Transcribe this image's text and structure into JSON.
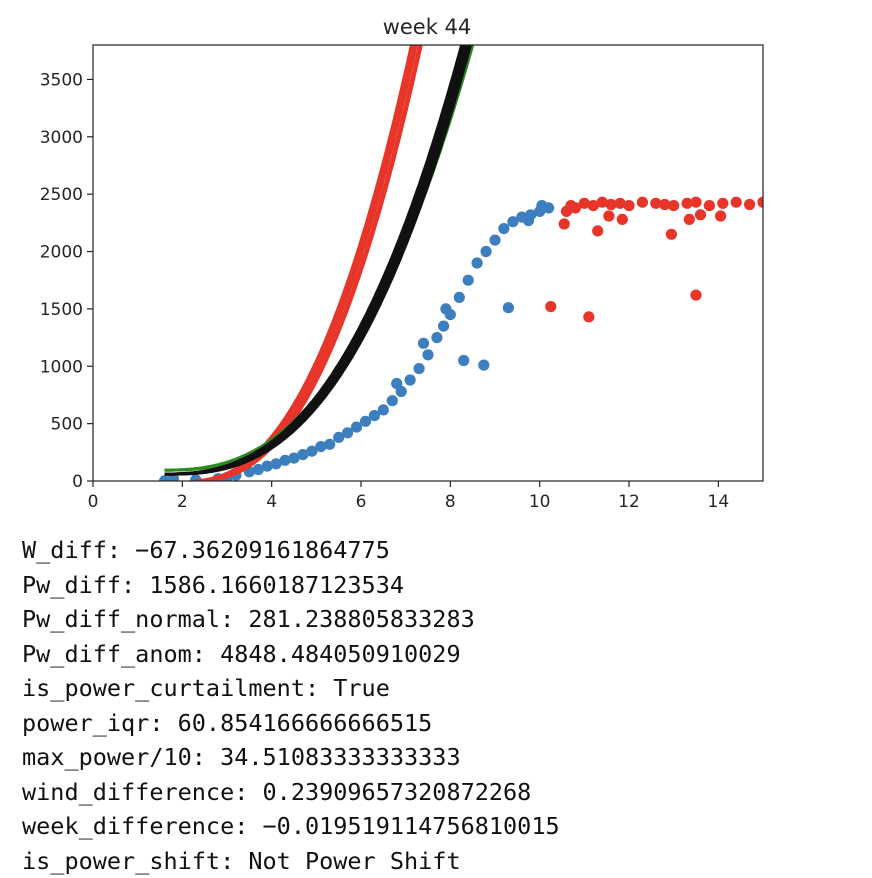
{
  "chart_data": {
    "type": "scatter",
    "title": "week 44",
    "xlabel": "",
    "ylabel": "",
    "xlim": [
      0,
      15
    ],
    "ylim": [
      0,
      3800
    ],
    "xticks": [
      0,
      2,
      4,
      6,
      8,
      10,
      12,
      14
    ],
    "yticks": [
      0,
      500,
      1000,
      1500,
      2000,
      2500,
      3000,
      3500
    ],
    "grid": false,
    "legend": "none",
    "colors": {
      "blue": "#3d7ebf",
      "red": "#e8352a",
      "black": "#111111",
      "green": "#2e8b22"
    },
    "series": [
      {
        "color": "#3d7ebf",
        "kind": "points",
        "points": [
          [
            1.6,
            0
          ],
          [
            1.8,
            20
          ],
          [
            2.3,
            10
          ],
          [
            2.8,
            20
          ],
          [
            3.0,
            30
          ],
          [
            3.2,
            50
          ],
          [
            3.5,
            80
          ],
          [
            3.7,
            100
          ],
          [
            3.9,
            130
          ],
          [
            4.1,
            150
          ],
          [
            4.3,
            180
          ],
          [
            4.5,
            200
          ],
          [
            4.7,
            230
          ],
          [
            4.9,
            260
          ],
          [
            5.1,
            300
          ],
          [
            5.3,
            320
          ],
          [
            5.5,
            380
          ],
          [
            5.7,
            420
          ],
          [
            5.9,
            470
          ],
          [
            6.1,
            520
          ],
          [
            6.3,
            570
          ],
          [
            6.5,
            620
          ],
          [
            6.7,
            700
          ],
          [
            6.9,
            780
          ],
          [
            7.1,
            880
          ],
          [
            7.3,
            980
          ],
          [
            7.5,
            1100
          ],
          [
            7.7,
            1250
          ],
          [
            7.85,
            1350
          ],
          [
            8.0,
            1450
          ],
          [
            8.2,
            1600
          ],
          [
            8.4,
            1750
          ],
          [
            8.6,
            1900
          ],
          [
            8.8,
            2000
          ],
          [
            9.0,
            2100
          ],
          [
            9.2,
            2200
          ],
          [
            9.4,
            2260
          ],
          [
            9.6,
            2300
          ],
          [
            9.8,
            2320
          ],
          [
            10.0,
            2350
          ],
          [
            10.2,
            2380
          ],
          [
            6.8,
            850
          ],
          [
            7.4,
            1200
          ],
          [
            7.9,
            1500
          ],
          [
            8.3,
            1050
          ],
          [
            8.75,
            1010
          ],
          [
            9.3,
            1510
          ],
          [
            9.75,
            2270
          ],
          [
            10.05,
            2400
          ]
        ]
      },
      {
        "color": "#e8352a",
        "kind": "points",
        "points": [
          [
            10.6,
            2350
          ],
          [
            10.7,
            2400
          ],
          [
            10.8,
            2380
          ],
          [
            11.0,
            2420
          ],
          [
            11.2,
            2400
          ],
          [
            11.4,
            2430
          ],
          [
            11.6,
            2410
          ],
          [
            11.8,
            2420
          ],
          [
            12.0,
            2400
          ],
          [
            12.3,
            2430
          ],
          [
            12.6,
            2420
          ],
          [
            12.8,
            2410
          ],
          [
            13.0,
            2400
          ],
          [
            13.3,
            2420
          ],
          [
            13.5,
            2430
          ],
          [
            13.8,
            2400
          ],
          [
            14.1,
            2420
          ],
          [
            14.4,
            2430
          ],
          [
            14.7,
            2410
          ],
          [
            15.0,
            2430
          ],
          [
            10.55,
            2240
          ],
          [
            11.3,
            2180
          ],
          [
            11.55,
            2310
          ],
          [
            11.85,
            2280
          ],
          [
            12.95,
            2150
          ],
          [
            13.35,
            2280
          ],
          [
            13.6,
            2320
          ],
          [
            14.05,
            2310
          ],
          [
            10.25,
            1520
          ],
          [
            11.1,
            1430
          ],
          [
            13.5,
            1620
          ]
        ]
      },
      {
        "color": "#e8352a",
        "kind": "curve",
        "lines": 6,
        "offsets": [
          0.0,
          0.07,
          -0.07,
          0.11,
          -0.11,
          0.04
        ]
      },
      {
        "color": "#2e8b22",
        "kind": "curve",
        "lines": 3,
        "offsets": [
          0.0,
          0.04,
          -0.04
        ]
      },
      {
        "color": "#111111",
        "kind": "curve",
        "lines": 6,
        "offsets": [
          0.0,
          0.06,
          -0.06,
          0.1,
          -0.1,
          0.03
        ]
      }
    ]
  },
  "stats": [
    "W_diff: −67.36209161864775",
    "Pw_diff: 1586.1660187123534",
    "Pw_diff_normal: 281.238805833283",
    "Pw_diff_anom: 4848.484050910029",
    "is_power_curtailment: True",
    "power_iqr: 60.854166666666515",
    "max_power/10: 34.51083333333333",
    "wind_difference: 0.23909657320872268",
    "week_difference: −0.019519114756810015",
    "is_power_shift: Not Power Shift"
  ]
}
